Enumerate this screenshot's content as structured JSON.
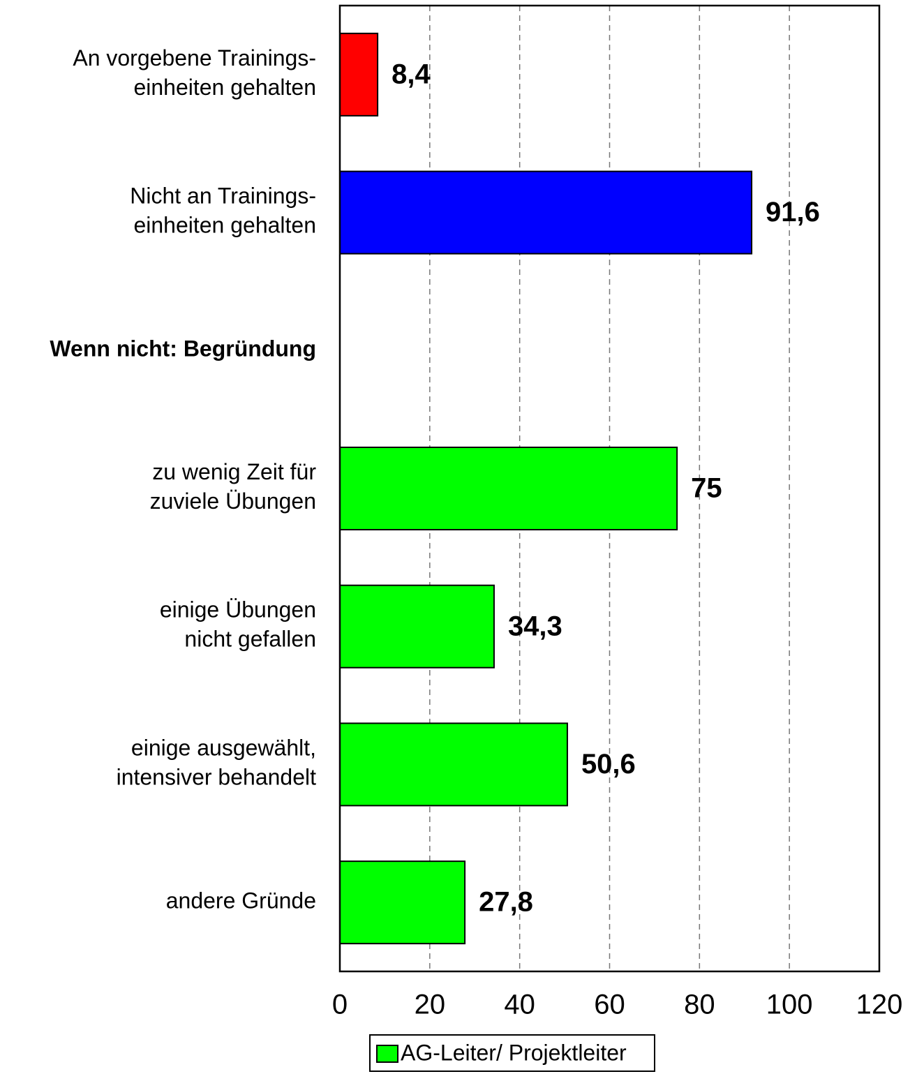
{
  "chart_data": {
    "type": "bar",
    "orientation": "horizontal",
    "categories": [
      "An vorgebene Trainings-\neinheiten gehalten",
      "Nicht an Trainings-\neinheiten gehalten",
      "Wenn nicht: Begründung",
      "zu wenig Zeit für\nzuviele Übungen",
      "einige Übungen\nnicht gefallen",
      "einige ausgewählt,\nintensiver behandelt",
      "andere Gründe"
    ],
    "bold_categories": [
      2
    ],
    "series": [
      {
        "name": "AG-Leiter/ Projektleiter",
        "color": "#00ff00",
        "values": [
          8.4,
          91.6,
          null,
          75,
          34.3,
          50.6,
          27.8
        ],
        "value_labels": [
          "8,4",
          "91,6",
          null,
          "75",
          "34,3",
          "50,6",
          "27,8"
        ],
        "colors": [
          "#ff0000",
          "#0000ff",
          null,
          "#00ff00",
          "#00ff00",
          "#00ff00",
          "#00ff00"
        ]
      }
    ],
    "xlim": [
      0,
      120
    ],
    "xticks": [
      0,
      20,
      40,
      60,
      80,
      100,
      120
    ],
    "grid": true,
    "legend": "bottom"
  }
}
